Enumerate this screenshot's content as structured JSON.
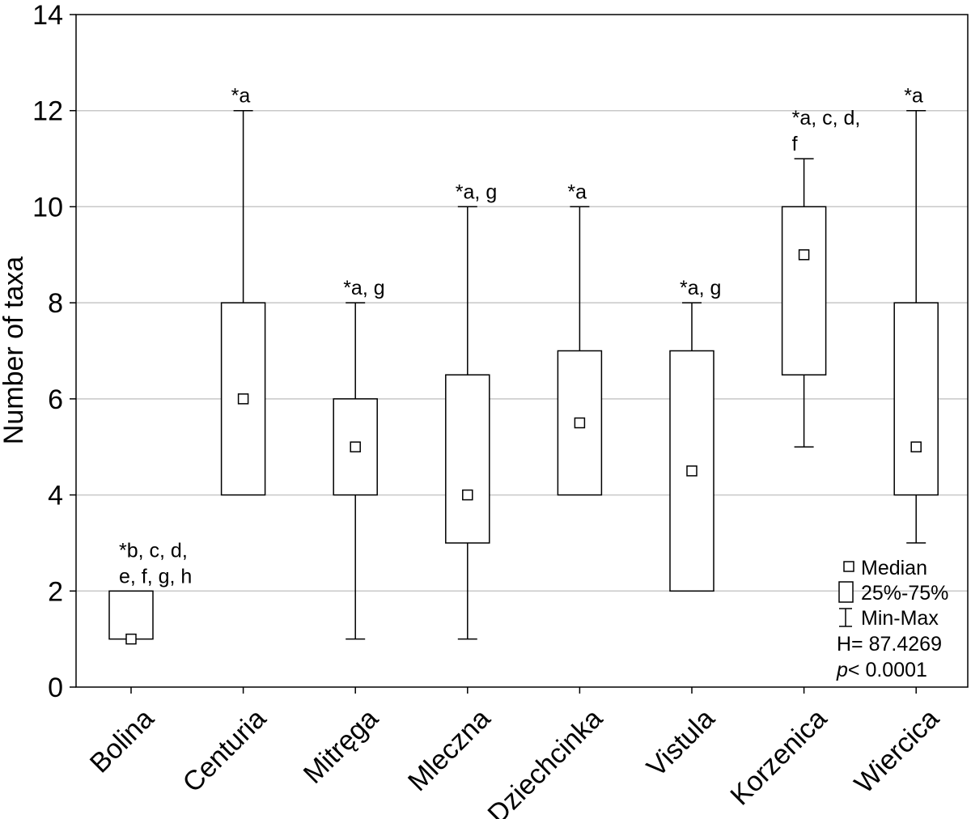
{
  "chart_data": {
    "type": "box",
    "ylabel": "Number of taxa",
    "xlabel": "",
    "ylim": [
      0,
      14
    ],
    "yticks": [
      "0",
      "2",
      "4",
      "6",
      "8",
      "10",
      "12",
      "14"
    ],
    "grid": true,
    "categories": [
      "Bolina",
      "Centuria",
      "Mitręga",
      "Mleczna",
      "Dziechcinka",
      "Vistula",
      "Korzenica",
      "Wiercica"
    ],
    "median": [
      1,
      6,
      5,
      4,
      5.5,
      4.5,
      9,
      5
    ],
    "q1": [
      1,
      4,
      4,
      3,
      4,
      2,
      6.5,
      4
    ],
    "q3": [
      2,
      8,
      6,
      6.5,
      7,
      7,
      10,
      8
    ],
    "min": [
      1,
      4,
      1,
      1,
      4,
      2,
      5,
      3
    ],
    "max": [
      2,
      12,
      8,
      10,
      10,
      8,
      11,
      12
    ],
    "annotations": [
      [
        "*b, c, d,",
        "e, f, g, h"
      ],
      [
        "*a"
      ],
      [
        "*a, g"
      ],
      [
        "*a, g"
      ],
      [
        "*a"
      ],
      [
        "*a, g"
      ],
      [
        "*a, c, d,",
        "f"
      ],
      [
        "*a"
      ]
    ],
    "legend": {
      "position": "bottom-right",
      "median": "Median",
      "box": "25%-75%",
      "whisker": "Min-Max",
      "h_stat": "H= 87.4269",
      "p_stat": "< 0.0001",
      "p_label": "p"
    }
  }
}
